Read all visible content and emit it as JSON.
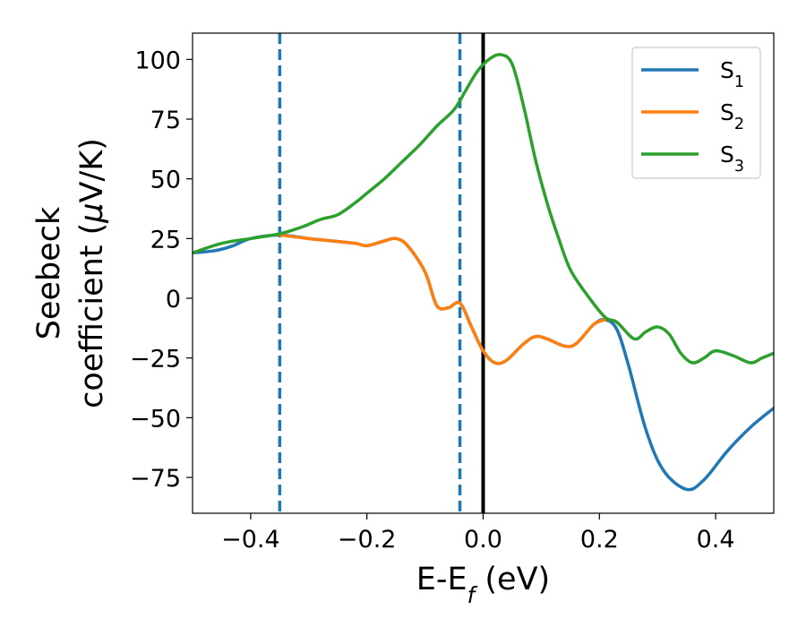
{
  "chart_data": {
    "type": "line",
    "xlabel": {
      "main": "E-E",
      "sub": "f",
      "unit": " (eV)"
    },
    "ylabel": {
      "line1": "Seebeck",
      "line2_prefix": "coefficient  (",
      "mu": "μ",
      "line2_suffix": "V/K)"
    },
    "xlim": [
      -0.5,
      0.5
    ],
    "ylim": [
      -90,
      111
    ],
    "xticks": [
      -0.4,
      -0.2,
      0.0,
      0.2,
      0.4
    ],
    "xtick_labels": [
      "−0.4",
      "−0.2",
      "0.0",
      "0.2",
      "0.4"
    ],
    "yticks": [
      -75,
      -50,
      -25,
      0,
      25,
      50,
      75,
      100
    ],
    "ytick_labels": [
      "−75",
      "−50",
      "−25",
      "0",
      "25",
      "50",
      "75",
      "100"
    ],
    "grid": false,
    "legend_position": "top-right",
    "vlines": [
      {
        "x": -0.35,
        "style": "dashed",
        "color": "#1f77b4"
      },
      {
        "x": -0.04,
        "style": "dashed",
        "color": "#1f77b4"
      },
      {
        "x": 0.0,
        "style": "solid",
        "color": "#000000"
      }
    ],
    "series": [
      {
        "name": "S",
        "sub": "1",
        "color": "#1f77b4",
        "points": [
          [
            -0.5,
            19
          ],
          [
            -0.46,
            20
          ],
          [
            -0.43,
            22
          ],
          [
            -0.4,
            25
          ],
          [
            -0.35,
            26.5
          ],
          [
            -0.3,
            25
          ],
          [
            -0.26,
            24
          ],
          [
            -0.22,
            23
          ],
          [
            -0.2,
            22
          ],
          [
            -0.17,
            24
          ],
          [
            -0.15,
            25
          ],
          [
            -0.13,
            22
          ],
          [
            -0.1,
            11
          ],
          [
            -0.08,
            -3
          ],
          [
            -0.06,
            -4
          ],
          [
            -0.04,
            -2
          ],
          [
            -0.02,
            -12
          ],
          [
            0.0,
            -22
          ],
          [
            0.02,
            -27
          ],
          [
            0.04,
            -26
          ],
          [
            0.07,
            -19
          ],
          [
            0.09,
            -16
          ],
          [
            0.11,
            -17
          ],
          [
            0.14,
            -20
          ],
          [
            0.16,
            -19
          ],
          [
            0.19,
            -11
          ],
          [
            0.21,
            -9
          ],
          [
            0.23,
            -13
          ],
          [
            0.25,
            -28
          ],
          [
            0.28,
            -55
          ],
          [
            0.31,
            -72
          ],
          [
            0.35,
            -80
          ],
          [
            0.38,
            -76
          ],
          [
            0.42,
            -64
          ],
          [
            0.46,
            -54
          ],
          [
            0.5,
            -46
          ]
        ]
      },
      {
        "name": "S",
        "sub": "2",
        "color": "#ff7f0e",
        "points": [
          [
            -0.35,
            26.5
          ],
          [
            -0.3,
            25
          ],
          [
            -0.26,
            24
          ],
          [
            -0.22,
            23
          ],
          [
            -0.2,
            22
          ],
          [
            -0.17,
            24
          ],
          [
            -0.15,
            25
          ],
          [
            -0.13,
            22
          ],
          [
            -0.1,
            11
          ],
          [
            -0.08,
            -3
          ],
          [
            -0.06,
            -4
          ],
          [
            -0.04,
            -2
          ],
          [
            -0.02,
            -12
          ],
          [
            0.0,
            -22
          ],
          [
            0.02,
            -27
          ],
          [
            0.04,
            -26
          ],
          [
            0.07,
            -19
          ],
          [
            0.09,
            -16
          ],
          [
            0.11,
            -17
          ],
          [
            0.14,
            -20
          ],
          [
            0.16,
            -19
          ],
          [
            0.19,
            -11
          ],
          [
            0.21,
            -9
          ]
        ]
      },
      {
        "name": "S",
        "sub": "3",
        "color": "#2ca02c",
        "points": [
          [
            -0.5,
            19
          ],
          [
            -0.45,
            23
          ],
          [
            -0.4,
            25
          ],
          [
            -0.35,
            27
          ],
          [
            -0.31,
            30
          ],
          [
            -0.28,
            33
          ],
          [
            -0.25,
            35
          ],
          [
            -0.22,
            40
          ],
          [
            -0.2,
            44
          ],
          [
            -0.17,
            50
          ],
          [
            -0.14,
            57
          ],
          [
            -0.11,
            64
          ],
          [
            -0.08,
            72
          ],
          [
            -0.05,
            79
          ],
          [
            -0.03,
            87
          ],
          [
            -0.01,
            95
          ],
          [
            0.01,
            100
          ],
          [
            0.03,
            102
          ],
          [
            0.05,
            98
          ],
          [
            0.07,
            80
          ],
          [
            0.09,
            58
          ],
          [
            0.11,
            40
          ],
          [
            0.13,
            25
          ],
          [
            0.15,
            12
          ],
          [
            0.18,
            1
          ],
          [
            0.21,
            -8
          ],
          [
            0.23,
            -10
          ],
          [
            0.26,
            -17
          ],
          [
            0.28,
            -14
          ],
          [
            0.3,
            -12
          ],
          [
            0.32,
            -15
          ],
          [
            0.34,
            -23
          ],
          [
            0.36,
            -27
          ],
          [
            0.38,
            -25
          ],
          [
            0.4,
            -22
          ],
          [
            0.43,
            -24
          ],
          [
            0.46,
            -27
          ],
          [
            0.48,
            -25
          ],
          [
            0.5,
            -23
          ]
        ]
      }
    ]
  }
}
